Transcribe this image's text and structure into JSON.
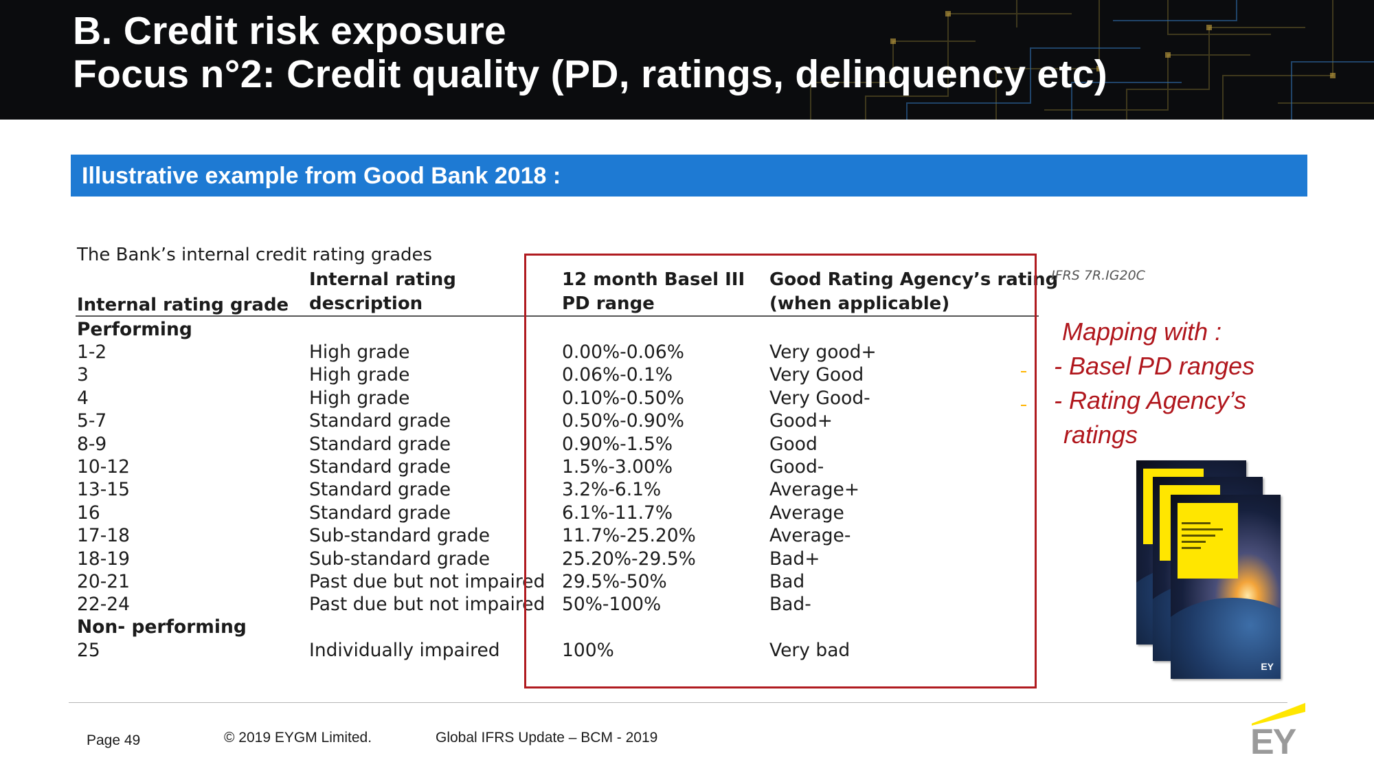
{
  "header": {
    "title_line1": "B. Credit risk exposure",
    "title_line2": "Focus n°2: Credit quality (PD, ratings, delinquency etc)"
  },
  "banner": {
    "text": "Illustrative example from Good Bank 2018 :"
  },
  "table": {
    "caption": "The Bank’s internal credit rating grades",
    "columns": {
      "grade": "Internal rating grade",
      "description_line1": "Internal rating",
      "description_line2": "description",
      "pd_line1": "12 month Basel III",
      "pd_line2": "PD range",
      "agency_line1": "Good Rating Agency’s rating",
      "agency_line2": "(when applicable)"
    },
    "section_performing": "Performing",
    "rows": [
      {
        "grade": "1-2",
        "description": "High grade",
        "pd": "0.00%-0.06%",
        "agency": "Very good+"
      },
      {
        "grade": "3",
        "description": "High grade",
        "pd": "0.06%-0.1%",
        "agency": "Very Good"
      },
      {
        "grade": "4",
        "description": "High grade",
        "pd": "0.10%-0.50%",
        "agency": "Very Good-"
      },
      {
        "grade": "5-7",
        "description": "Standard grade",
        "pd": "0.50%-0.90%",
        "agency": "Good+"
      },
      {
        "grade": "8-9",
        "description": "Standard grade",
        "pd": "0.90%-1.5%",
        "agency": "Good"
      },
      {
        "grade": "10-12",
        "description": "Standard grade",
        "pd": "1.5%-3.00%",
        "agency": "Good-"
      },
      {
        "grade": "13-15",
        "description": "Standard grade",
        "pd": "3.2%-6.1%",
        "agency": "Average+"
      },
      {
        "grade": "16",
        "description": "Standard grade",
        "pd": "6.1%-11.7%",
        "agency": "Average"
      },
      {
        "grade": "17-18",
        "description": "Sub-standard grade",
        "pd": "11.7%-25.20%",
        "agency": "Average-"
      },
      {
        "grade": "18-19",
        "description": "Sub-standard grade",
        "pd": "25.20%-29.5%",
        "agency": "Bad+"
      },
      {
        "grade": "20-21",
        "description": "Past due but not impaired",
        "pd": "29.5%-50%",
        "agency": "Bad"
      },
      {
        "grade": "22-24",
        "description": "Past due but not impaired",
        "pd": "50%-100%",
        "agency": "Bad-"
      }
    ],
    "section_nonperforming": "Non- performing",
    "nonperforming_row": {
      "grade": "25",
      "description": "Individually impaired",
      "pd": "100%",
      "agency": "Very bad"
    },
    "reference": "IFRS 7R.IG20C"
  },
  "mapping": {
    "line1": "Mapping with :",
    "line2": "- Basel PD ranges",
    "line3": "- Rating Agency’s",
    "line4": "ratings"
  },
  "footer": {
    "page": "Page 49",
    "copyright": "© 2019 EYGM Limited.",
    "event": "Global IFRS Update – BCM - 2019",
    "logo": "EY"
  },
  "colors": {
    "header_bg": "#0b0c0e",
    "banner_blue": "#1e7ad3",
    "highlight_red": "#b01b20",
    "ey_yellow": "#ffe600"
  }
}
